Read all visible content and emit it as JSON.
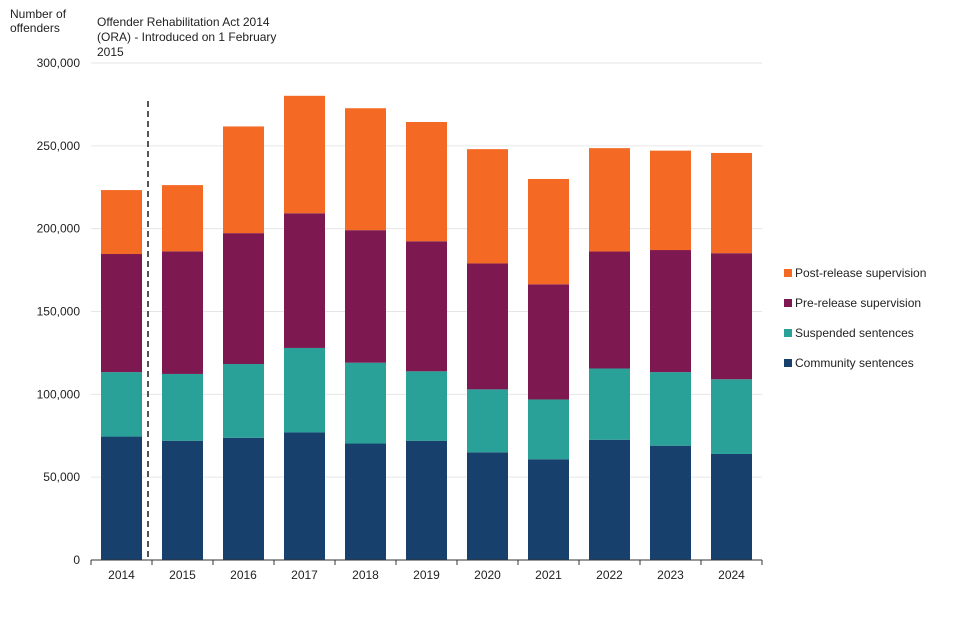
{
  "chart_data": {
    "type": "bar",
    "stacked": true,
    "title": "",
    "xlabel": "",
    "ylabel_lines": [
      "Number of",
      "offenders"
    ],
    "ylim": [
      0,
      300000
    ],
    "yticks": [
      0,
      50000,
      100000,
      150000,
      200000,
      250000,
      300000
    ],
    "ytick_labels": [
      "0",
      "50,000",
      "100,000",
      "150,000",
      "200,000",
      "250,000",
      "300,000"
    ],
    "grid": true,
    "legend_position": "right",
    "categories": [
      "2014",
      "2015",
      "2016",
      "2017",
      "2018",
      "2019",
      "2020",
      "2021",
      "2022",
      "2023",
      "2024"
    ],
    "series": [
      {
        "name": "Community sentences",
        "color": "#17406d",
        "values": [
          74500,
          72000,
          73800,
          77000,
          70300,
          72000,
          65000,
          60800,
          72600,
          69000,
          64000
        ]
      },
      {
        "name": "Suspended sentences",
        "color": "#2aa198",
        "values": [
          38900,
          40300,
          44500,
          51000,
          48800,
          41900,
          38000,
          36100,
          43000,
          44400,
          45100
        ]
      },
      {
        "name": "Pre-release supervision",
        "color": "#7d1850",
        "values": [
          71300,
          74000,
          79000,
          81300,
          80000,
          78500,
          76000,
          69500,
          70600,
          73700,
          76100
        ]
      },
      {
        "name": "Post-release supervision",
        "color": "#f46a25",
        "values": [
          38600,
          40000,
          64400,
          70900,
          73600,
          72000,
          69000,
          63600,
          62400,
          60000,
          60500
        ]
      }
    ],
    "annotation": {
      "lines": [
        "Offender Rehabilitation Act 2014",
        "(ORA) - Introduced on 1 February",
        "2015"
      ],
      "marker_between": [
        "2014",
        "2015"
      ]
    }
  }
}
